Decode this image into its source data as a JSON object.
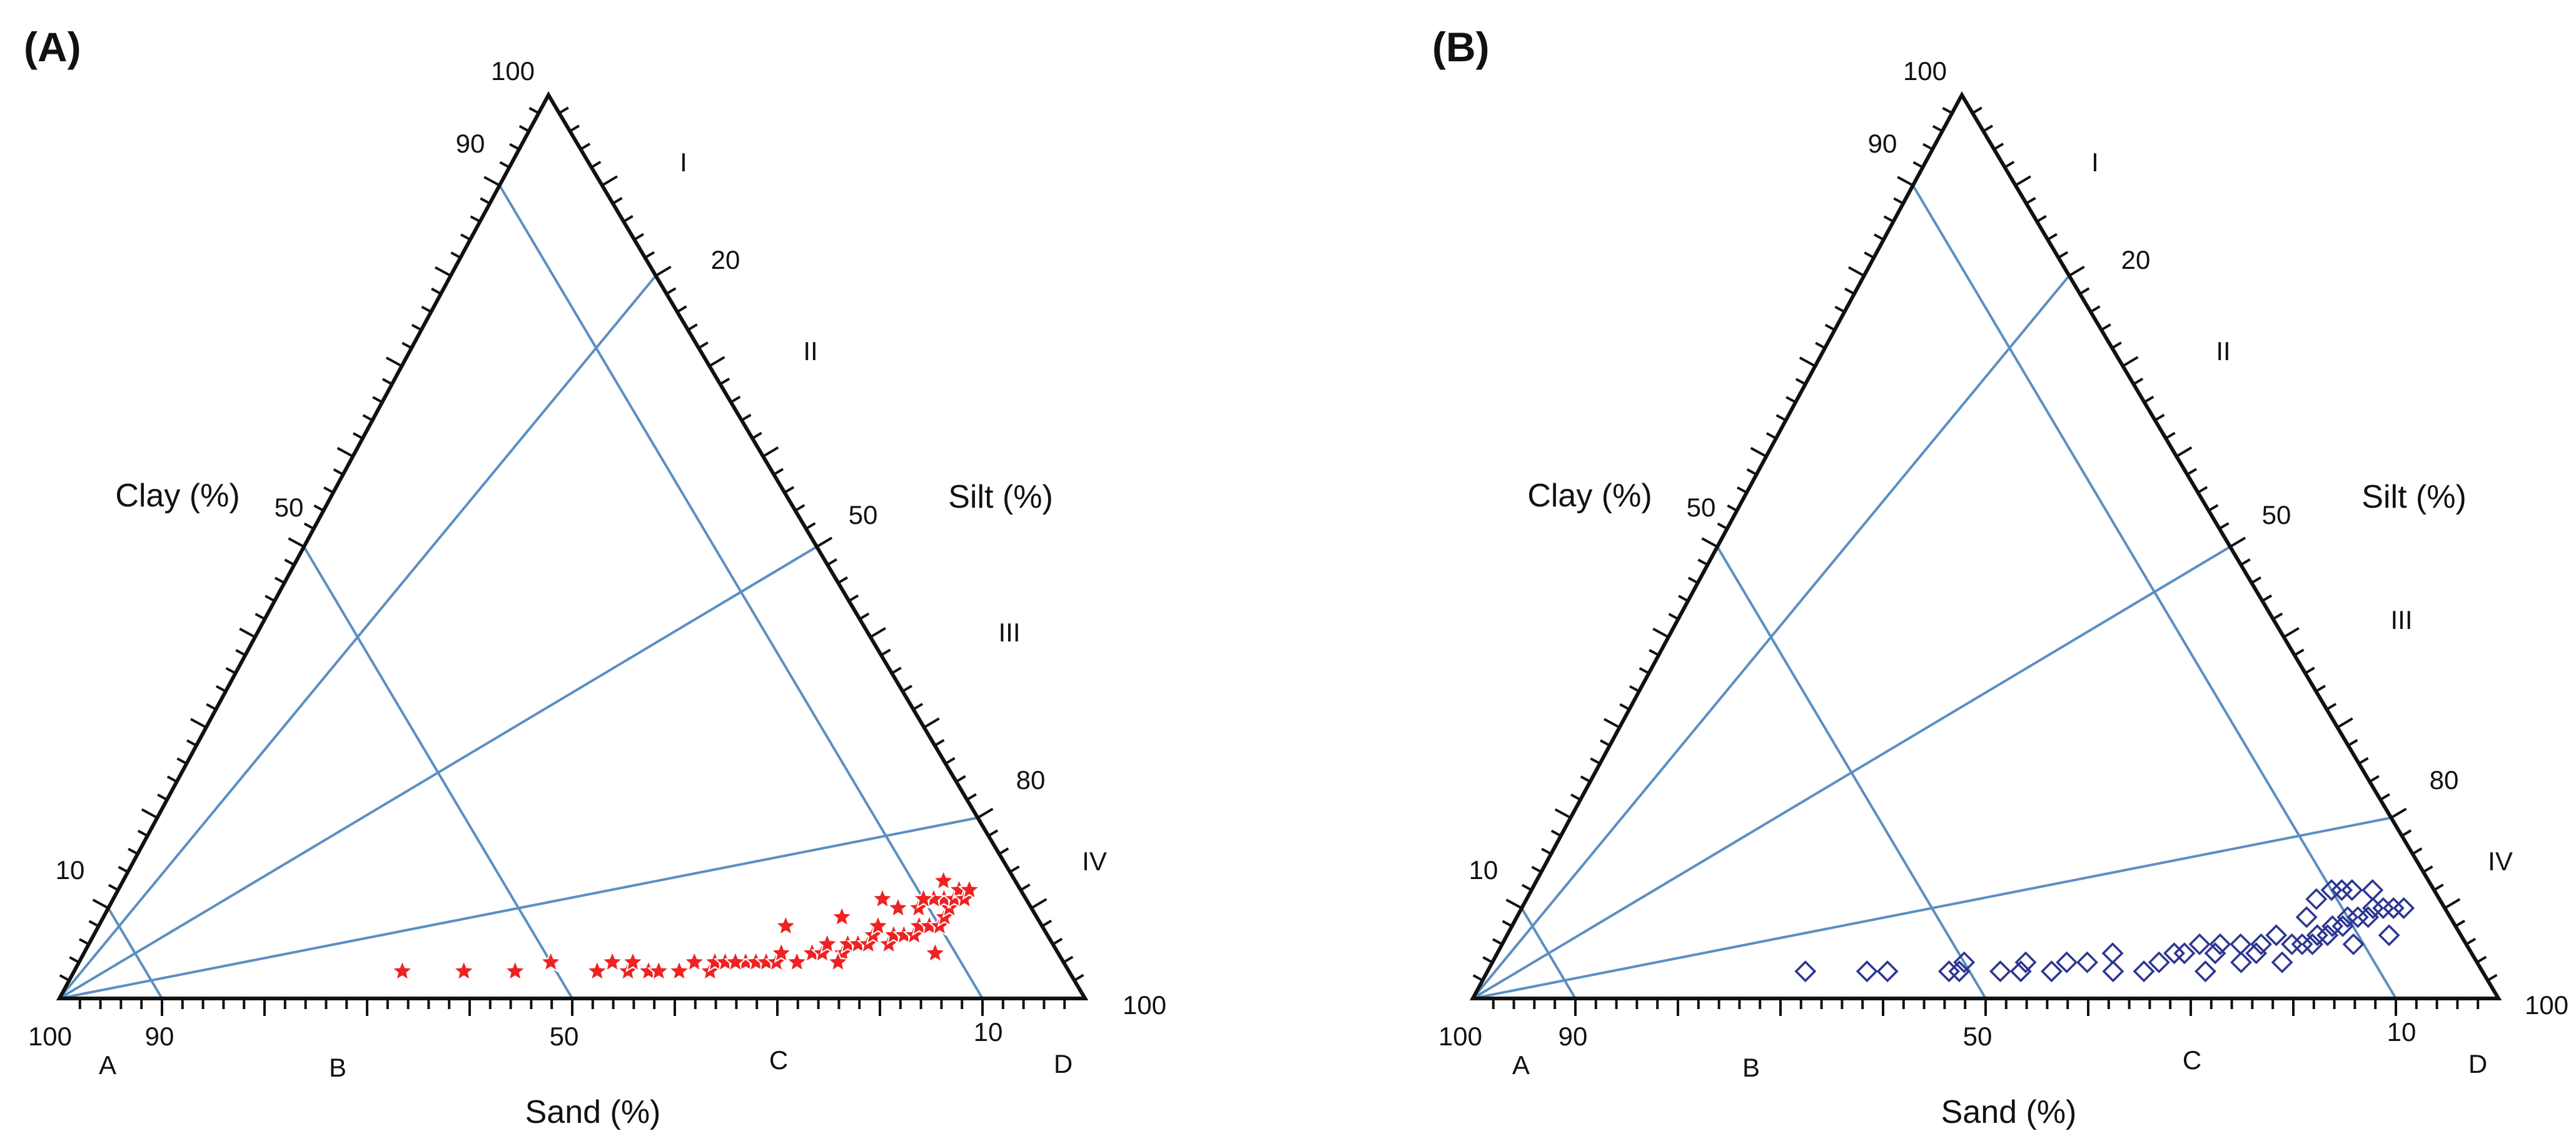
{
  "chart_data": [
    {
      "type": "scatter",
      "subtype": "ternary",
      "panel": "(A)",
      "axes": {
        "clay": "Clay (%)",
        "silt": "Silt (%)",
        "sand": "Sand (%)"
      },
      "clay_ticks": {
        "t10": "10",
        "t50": "50",
        "t90": "90",
        "t100": "100"
      },
      "silt_ticks": {
        "t20": "20",
        "t50": "50",
        "t80": "80",
        "t100": "100"
      },
      "sand_ticks": {
        "t100": "100",
        "t90": "90",
        "t50": "50",
        "t10": "10"
      },
      "zones_right": [
        "I",
        "II",
        "III",
        "IV"
      ],
      "zones_bottom": [
        "A",
        "B",
        "C",
        "D"
      ],
      "guide_lines": {
        "from_sand_corner_to_silt": [
          20,
          50,
          80
        ],
        "from_sand_axis_to_clay_axis": [
          {
            "sand_percent": 10,
            "clay_percent": 90
          },
          {
            "sand_percent": 50,
            "clay_percent": 50
          },
          {
            "sand_percent": 90,
            "clay_percent": 10
          }
        ]
      },
      "marker": "star",
      "color": "#ee2222",
      "points": [
        {
          "sand": 65,
          "silt": 32,
          "clay": 3
        },
        {
          "sand": 59,
          "silt": 38,
          "clay": 3
        },
        {
          "sand": 54,
          "silt": 43,
          "clay": 3
        },
        {
          "sand": 50,
          "silt": 46,
          "clay": 4
        },
        {
          "sand": 46,
          "silt": 51,
          "clay": 3
        },
        {
          "sand": 44,
          "silt": 52,
          "clay": 4
        },
        {
          "sand": 43,
          "silt": 54,
          "clay": 3
        },
        {
          "sand": 42,
          "silt": 54,
          "clay": 4
        },
        {
          "sand": 41,
          "silt": 56,
          "clay": 3
        },
        {
          "sand": 40,
          "silt": 57,
          "clay": 3
        },
        {
          "sand": 38,
          "silt": 59,
          "clay": 3
        },
        {
          "sand": 36,
          "silt": 60,
          "clay": 4
        },
        {
          "sand": 35,
          "silt": 62,
          "clay": 3
        },
        {
          "sand": 34,
          "silt": 62,
          "clay": 4
        },
        {
          "sand": 33,
          "silt": 63,
          "clay": 4
        },
        {
          "sand": 31,
          "silt": 65,
          "clay": 4
        },
        {
          "sand": 30,
          "silt": 66,
          "clay": 4
        },
        {
          "sand": 29,
          "silt": 67,
          "clay": 4
        },
        {
          "sand": 28,
          "silt": 68,
          "clay": 4
        },
        {
          "sand": 27,
          "silt": 68,
          "clay": 5
        },
        {
          "sand": 26,
          "silt": 70,
          "clay": 4
        },
        {
          "sand": 24,
          "silt": 71,
          "clay": 5
        },
        {
          "sand": 23,
          "silt": 72,
          "clay": 5
        },
        {
          "sand": 22,
          "silt": 72,
          "clay": 6
        },
        {
          "sand": 21,
          "silt": 74,
          "clay": 5
        },
        {
          "sand": 20,
          "silt": 74,
          "clay": 6
        },
        {
          "sand": 19,
          "silt": 75,
          "clay": 6
        },
        {
          "sand": 18,
          "silt": 76,
          "clay": 6
        },
        {
          "sand": 17,
          "silt": 76,
          "clay": 7
        },
        {
          "sand": 16,
          "silt": 78,
          "clay": 6
        },
        {
          "sand": 15,
          "silt": 78,
          "clay": 7
        },
        {
          "sand": 14,
          "silt": 79,
          "clay": 7
        },
        {
          "sand": 13,
          "silt": 80,
          "clay": 7
        },
        {
          "sand": 12,
          "silt": 80,
          "clay": 8
        },
        {
          "sand": 11,
          "silt": 81,
          "clay": 8
        },
        {
          "sand": 11,
          "silt": 79,
          "clay": 10
        },
        {
          "sand": 10,
          "silt": 82,
          "clay": 8
        },
        {
          "sand": 9,
          "silt": 82,
          "clay": 9
        },
        {
          "sand": 8,
          "silt": 82,
          "clay": 10
        },
        {
          "sand": 8,
          "silt": 81,
          "clay": 11
        },
        {
          "sand": 7,
          "silt": 82,
          "clay": 11
        },
        {
          "sand": 7,
          "silt": 80,
          "clay": 13
        },
        {
          "sand": 6,
          "silt": 82,
          "clay": 12
        },
        {
          "sand": 6,
          "silt": 83,
          "clay": 11
        },
        {
          "sand": 5,
          "silt": 83,
          "clay": 12
        },
        {
          "sand": 9,
          "silt": 80,
          "clay": 11
        },
        {
          "sand": 13,
          "silt": 77,
          "clay": 10
        },
        {
          "sand": 25,
          "silt": 67,
          "clay": 8
        },
        {
          "sand": 14,
          "silt": 75,
          "clay": 11
        },
        {
          "sand": 10,
          "silt": 79,
          "clay": 11
        },
        {
          "sand": 19,
          "silt": 72,
          "clay": 9
        },
        {
          "sand": 16,
          "silt": 76,
          "clay": 8
        },
        {
          "sand": 12,
          "silt": 83,
          "clay": 5
        },
        {
          "sand": 32,
          "silt": 64,
          "clay": 4
        },
        {
          "sand": 22,
          "silt": 74,
          "clay": 4
        }
      ]
    },
    {
      "type": "scatter",
      "subtype": "ternary",
      "panel": "(B)",
      "axes": {
        "clay": "Clay (%)",
        "silt": "Silt (%)",
        "sand": "Sand (%)"
      },
      "clay_ticks": {
        "t10": "10",
        "t50": "50",
        "t90": "90",
        "t100": "100"
      },
      "silt_ticks": {
        "t20": "20",
        "t50": "50",
        "t80": "80",
        "t100": "100"
      },
      "sand_ticks": {
        "t100": "100",
        "t90": "90",
        "t50": "50",
        "t10": "10"
      },
      "zones_right": [
        "I",
        "II",
        "III",
        "IV"
      ],
      "zones_bottom": [
        "A",
        "B",
        "C",
        "D"
      ],
      "guide_lines": {
        "from_sand_corner_to_silt": [
          20,
          50,
          80
        ],
        "from_sand_axis_to_clay_axis": [
          {
            "sand_percent": 10,
            "clay_percent": 90
          },
          {
            "sand_percent": 50,
            "clay_percent": 50
          },
          {
            "sand_percent": 90,
            "clay_percent": 10
          }
        ]
      },
      "marker": "diamond",
      "color": "#2c3591",
      "points": [
        {
          "sand": 66,
          "silt": 31,
          "clay": 3
        },
        {
          "sand": 60,
          "silt": 37,
          "clay": 3
        },
        {
          "sand": 58,
          "silt": 39,
          "clay": 3
        },
        {
          "sand": 52,
          "silt": 45,
          "clay": 3
        },
        {
          "sand": 51,
          "silt": 46,
          "clay": 3
        },
        {
          "sand": 50,
          "silt": 46,
          "clay": 4
        },
        {
          "sand": 47,
          "silt": 50,
          "clay": 3
        },
        {
          "sand": 45,
          "silt": 52,
          "clay": 3
        },
        {
          "sand": 44,
          "silt": 52,
          "clay": 4
        },
        {
          "sand": 42,
          "silt": 55,
          "clay": 3
        },
        {
          "sand": 40,
          "silt": 56,
          "clay": 4
        },
        {
          "sand": 38,
          "silt": 58,
          "clay": 4
        },
        {
          "sand": 36,
          "silt": 61,
          "clay": 3
        },
        {
          "sand": 35,
          "silt": 60,
          "clay": 5
        },
        {
          "sand": 33,
          "silt": 64,
          "clay": 3
        },
        {
          "sand": 29,
          "silt": 66,
          "clay": 5
        },
        {
          "sand": 28,
          "silt": 67,
          "clay": 5
        },
        {
          "sand": 27,
          "silt": 70,
          "clay": 3
        },
        {
          "sand": 26,
          "silt": 68,
          "clay": 6
        },
        {
          "sand": 25,
          "silt": 70,
          "clay": 5
        },
        {
          "sand": 24,
          "silt": 70,
          "clay": 6
        },
        {
          "sand": 23,
          "silt": 73,
          "clay": 4
        },
        {
          "sand": 22,
          "silt": 72,
          "clay": 6
        },
        {
          "sand": 21,
          "silt": 74,
          "clay": 5
        },
        {
          "sand": 20,
          "silt": 74,
          "clay": 6
        },
        {
          "sand": 19,
          "silt": 77,
          "clay": 4
        },
        {
          "sand": 18,
          "silt": 75,
          "clay": 7
        },
        {
          "sand": 17,
          "silt": 77,
          "clay": 6
        },
        {
          "sand": 16,
          "silt": 78,
          "clay": 6
        },
        {
          "sand": 15,
          "silt": 79,
          "clay": 6
        },
        {
          "sand": 14,
          "silt": 79,
          "clay": 7
        },
        {
          "sand": 13,
          "silt": 80,
          "clay": 7
        },
        {
          "sand": 12,
          "silt": 80,
          "clay": 8
        },
        {
          "sand": 11,
          "silt": 81,
          "clay": 8
        },
        {
          "sand": 10,
          "silt": 81,
          "clay": 9
        },
        {
          "sand": 9,
          "silt": 82,
          "clay": 9
        },
        {
          "sand": 8,
          "silt": 83,
          "clay": 9
        },
        {
          "sand": 7,
          "silt": 83,
          "clay": 10
        },
        {
          "sand": 6,
          "silt": 84,
          "clay": 10
        },
        {
          "sand": 5,
          "silt": 85,
          "clay": 10
        },
        {
          "sand": 4,
          "silt": 86,
          "clay": 10
        },
        {
          "sand": 10,
          "silt": 78,
          "clay": 12
        },
        {
          "sand": 8,
          "silt": 80,
          "clay": 12
        },
        {
          "sand": 12,
          "silt": 77,
          "clay": 11
        },
        {
          "sand": 6,
          "silt": 82,
          "clay": 12
        },
        {
          "sand": 14,
          "silt": 77,
          "clay": 9
        },
        {
          "sand": 9,
          "silt": 79,
          "clay": 12
        },
        {
          "sand": 11,
          "silt": 83,
          "clay": 6
        },
        {
          "sand": 31,
          "silt": 65,
          "clay": 4
        },
        {
          "sand": 7,
          "silt": 86,
          "clay": 7
        }
      ]
    }
  ]
}
